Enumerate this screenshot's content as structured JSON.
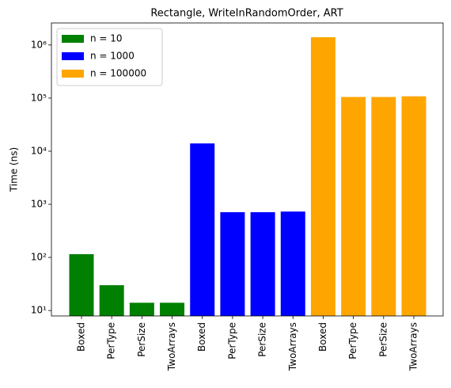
{
  "chart_data": {
    "type": "bar",
    "title": "Rectangle, WriteInRandomOrder, ART",
    "y_label": "Time (ns)",
    "categories": [
      "Boxed",
      "PerType",
      "PerSize",
      "TwoArrays",
      "Boxed",
      "PerType",
      "PerSize",
      "TwoArrays",
      "Boxed",
      "PerType",
      "PerSize",
      "TwoArrays"
    ],
    "series": [
      {
        "name": "n = 10",
        "color": "#008000",
        "values": [
          115,
          30,
          14,
          14,
          null,
          null,
          null,
          null,
          null,
          null,
          null,
          null
        ]
      },
      {
        "name": "n = 1000",
        "color": "#0000ff",
        "values": [
          null,
          null,
          null,
          null,
          14000,
          710,
          710,
          730,
          null,
          null,
          null,
          null
        ]
      },
      {
        "name": "n = 100000",
        "color": "#ffa500",
        "values": [
          null,
          null,
          null,
          null,
          null,
          null,
          null,
          null,
          1400000,
          105000,
          105000,
          108000
        ]
      }
    ],
    "log_y": true,
    "ylim": [
      7.9,
      2600000
    ],
    "yticks": [
      {
        "value": 10,
        "label": "10¹"
      },
      {
        "value": 100,
        "label": "10²"
      },
      {
        "value": 1000,
        "label": "10³"
      },
      {
        "value": 10000,
        "label": "10⁴"
      },
      {
        "value": 100000,
        "label": "10⁵"
      },
      {
        "value": 1000000,
        "label": "10⁶"
      }
    ],
    "legend": "upper left"
  }
}
